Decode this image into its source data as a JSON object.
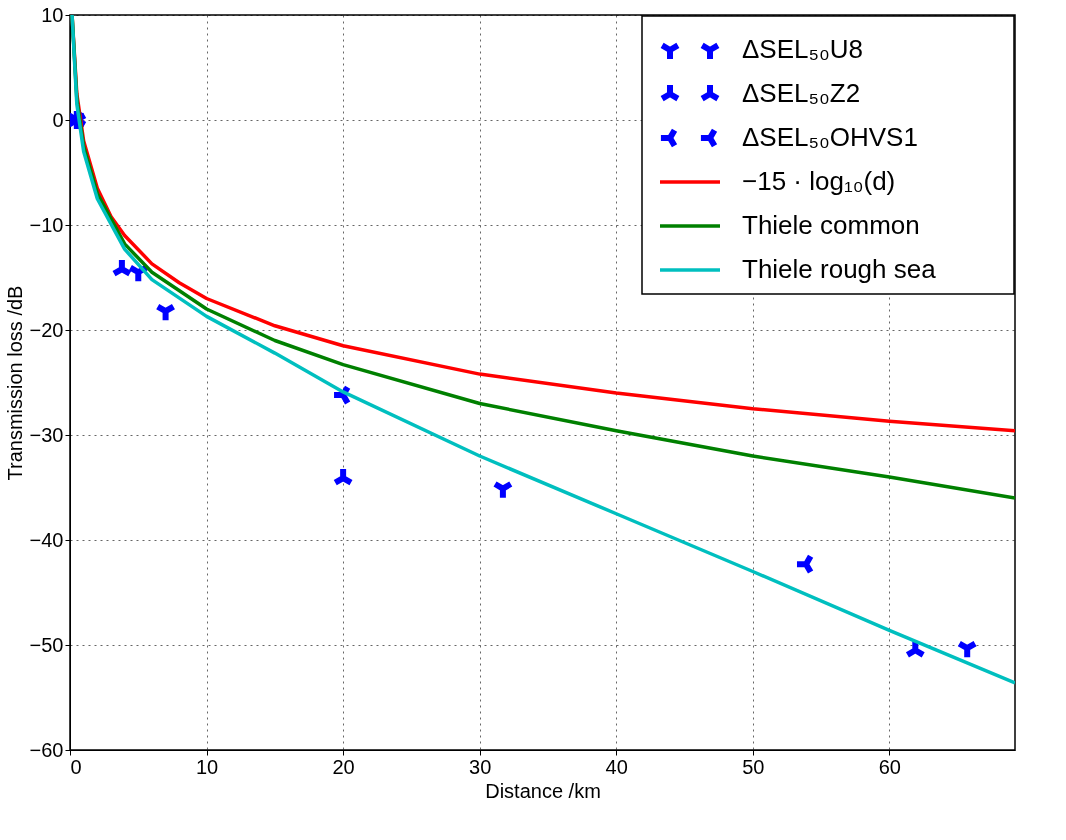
{
  "chart_data": {
    "type": "scatter",
    "xlabel": "Distance /km",
    "ylabel": "Transmission loss /dB",
    "xlim": [
      0,
      69.2
    ],
    "ylim": [
      -60,
      10
    ],
    "xticks": [
      0,
      10,
      20,
      30,
      40,
      50,
      60
    ],
    "yticks": [
      -60,
      -50,
      -40,
      -30,
      -20,
      -10,
      0,
      10
    ],
    "grid": true,
    "legend": "top right",
    "series": [
      {
        "name": "ΔSEL₅₀U8",
        "marker": "cross",
        "color": "#0000ff",
        "x": [
          0.5,
          5,
          7,
          31.7,
          65.7
        ],
        "values": [
          0,
          -14.5,
          -18.2,
          -35.1,
          -50.3
        ]
      },
      {
        "name": "ΔSEL₅₀Z2",
        "marker": "cross",
        "color": "#0000ff",
        "x": [
          0.5,
          3.8,
          20,
          61.9
        ],
        "values": [
          0,
          -14.2,
          -34.1,
          -50.5
        ]
      },
      {
        "name": "ΔSEL₅₀OHVS1",
        "marker": "cross",
        "color": "#0000ff",
        "x": [
          0.5,
          20,
          53.9
        ],
        "values": [
          0,
          -26.2,
          -42.3
        ]
      },
      {
        "name": "−15 · log₁₀(d)",
        "type": "line",
        "line_style": "solid",
        "color": "#ff0000",
        "x": [
          0.15,
          0.5,
          1,
          2,
          3,
          4,
          6,
          8,
          10,
          15,
          20,
          30,
          40,
          50,
          60,
          69.2
        ],
        "values": [
          10,
          2.5,
          -2,
          -6.5,
          -9.2,
          -11,
          -13.7,
          -15.5,
          -17,
          -19.6,
          -21.5,
          -24.2,
          -26,
          -27.5,
          -28.7,
          -29.6
        ]
      },
      {
        "name": "Thiele common",
        "type": "line",
        "line_style": "solid",
        "color": "#008000",
        "x": [
          0.15,
          0.5,
          1,
          2,
          4,
          6,
          10,
          15,
          20,
          30,
          40,
          50,
          60,
          69.2
        ],
        "values": [
          10,
          2,
          -2.5,
          -7,
          -11.8,
          -14.5,
          -18,
          -21,
          -23.3,
          -27,
          -29.6,
          -32,
          -34,
          -36
        ]
      },
      {
        "name": "Thiele rough sea",
        "type": "line",
        "line_style": "solid",
        "color": "#00bfbf",
        "x": [
          0.15,
          0.5,
          1,
          2,
          4,
          6,
          10,
          15,
          20,
          30,
          40,
          50,
          60,
          69.2
        ],
        "values": [
          10,
          1.5,
          -3,
          -7.5,
          -12.3,
          -15.2,
          -18.7,
          -22.2,
          -25.9,
          -32,
          -37.5,
          -43,
          -48.6,
          -53.6
        ]
      }
    ]
  }
}
